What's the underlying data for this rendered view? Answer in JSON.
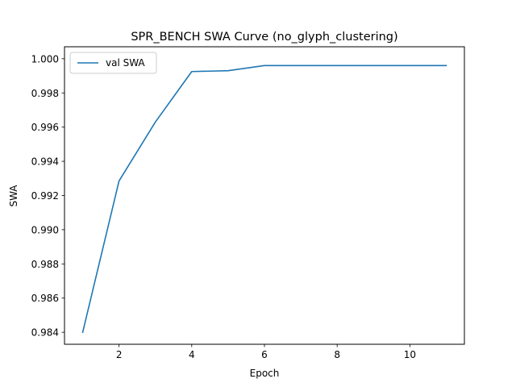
{
  "chart_data": {
    "type": "line",
    "title": "SPR_BENCH SWA Curve (no_glyph_clustering)",
    "xlabel": "Epoch",
    "ylabel": "SWA",
    "xlim": [
      0.5,
      11.5
    ],
    "ylim": [
      0.9833,
      1.0007
    ],
    "xticks": [
      2,
      4,
      6,
      8,
      10
    ],
    "yticks": [
      0.984,
      0.986,
      0.988,
      0.99,
      0.992,
      0.994,
      0.996,
      0.998,
      1.0
    ],
    "xtick_labels": [
      "2",
      "4",
      "6",
      "8",
      "10"
    ],
    "ytick_labels": [
      "0.984",
      "0.986",
      "0.988",
      "0.990",
      "0.992",
      "0.994",
      "0.996",
      "0.998",
      "1.000"
    ],
    "grid": false,
    "legend_position": "top-left",
    "series": [
      {
        "name": "val SWA",
        "color": "#1f77b4",
        "x": [
          1,
          2,
          3,
          4,
          5,
          6,
          7,
          8,
          9,
          10,
          11
        ],
        "values": [
          0.984,
          0.99285,
          0.9963,
          0.99925,
          0.9993,
          0.9996,
          0.9996,
          0.9996,
          0.9996,
          0.9996,
          0.9996
        ]
      }
    ]
  }
}
